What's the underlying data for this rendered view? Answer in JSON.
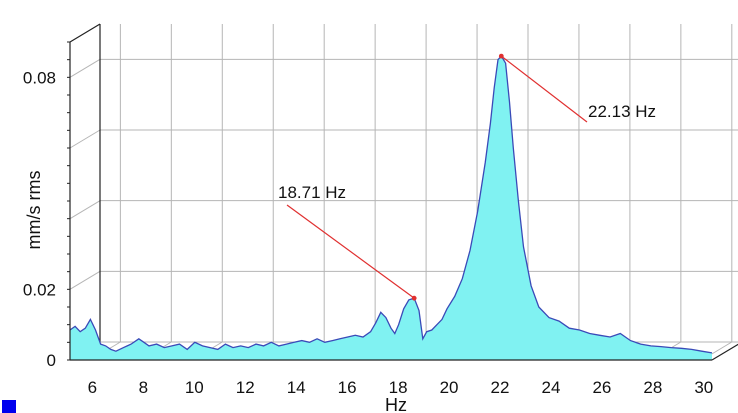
{
  "chart_data": {
    "type": "area",
    "xlabel": "Hz",
    "ylabel": "mm/s rms",
    "xlim": [
      5.2,
      30.4
    ],
    "ylim": [
      0,
      0.09
    ],
    "x_ticks": [
      "6",
      "8",
      "10",
      "12",
      "14",
      "16",
      "18",
      "20",
      "22",
      "24",
      "26",
      "28",
      "30"
    ],
    "y_ticks": [
      "0",
      "0.02",
      "0.08"
    ],
    "grid": true,
    "fill_color": "#80f2f2",
    "line_color": "#3a4ab8",
    "annotation_color": "#e03030",
    "series": [
      {
        "x": [
          5.2,
          5.4,
          5.6,
          5.8,
          6.0,
          6.2,
          6.4,
          6.6,
          6.8,
          7.0,
          7.3,
          7.6,
          7.9,
          8.1,
          8.3,
          8.6,
          8.9,
          9.2,
          9.5,
          9.8,
          10.1,
          10.4,
          10.7,
          11.0,
          11.3,
          11.6,
          11.9,
          12.2,
          12.5,
          12.8,
          13.1,
          13.4,
          13.7,
          14.0,
          14.3,
          14.6,
          14.9,
          15.2,
          15.5,
          15.8,
          16.1,
          16.4,
          16.7,
          17.0,
          17.2,
          17.4,
          17.6,
          17.8,
          17.95,
          18.1,
          18.3,
          18.5,
          18.71,
          18.9,
          19.05,
          19.2,
          19.4,
          19.6,
          19.8,
          20.0,
          20.3,
          20.6,
          20.9,
          21.2,
          21.5,
          21.7,
          21.85,
          22.0,
          22.13,
          22.3,
          22.45,
          22.6,
          22.8,
          23.0,
          23.3,
          23.6,
          24.0,
          24.4,
          24.8,
          25.2,
          25.6,
          26.0,
          26.4,
          26.8,
          27.2,
          27.6,
          28.0,
          28.4,
          28.8,
          29.2,
          29.6,
          30.0,
          30.4
        ],
        "y": [
          0.0085,
          0.0095,
          0.008,
          0.009,
          0.0115,
          0.0085,
          0.0045,
          0.004,
          0.003,
          0.0025,
          0.0035,
          0.0045,
          0.006,
          0.005,
          0.004,
          0.0045,
          0.0035,
          0.004,
          0.0045,
          0.003,
          0.005,
          0.004,
          0.0035,
          0.003,
          0.0045,
          0.0035,
          0.004,
          0.0035,
          0.0045,
          0.004,
          0.005,
          0.004,
          0.0045,
          0.005,
          0.0055,
          0.005,
          0.006,
          0.005,
          0.0055,
          0.006,
          0.0065,
          0.007,
          0.0065,
          0.008,
          0.0105,
          0.0135,
          0.012,
          0.009,
          0.0075,
          0.01,
          0.0145,
          0.017,
          0.0175,
          0.014,
          0.006,
          0.008,
          0.0085,
          0.01,
          0.0115,
          0.0145,
          0.018,
          0.023,
          0.031,
          0.042,
          0.056,
          0.067,
          0.077,
          0.085,
          0.086,
          0.084,
          0.073,
          0.06,
          0.045,
          0.032,
          0.021,
          0.015,
          0.012,
          0.011,
          0.009,
          0.0085,
          0.0075,
          0.007,
          0.0065,
          0.0075,
          0.0055,
          0.0045,
          0.004,
          0.0038,
          0.0035,
          0.0033,
          0.003,
          0.0025,
          0.002
        ]
      }
    ],
    "annotations": [
      {
        "label": "18.71 Hz",
        "x": 18.71,
        "y": 0.0175
      },
      {
        "label": "22.13 Hz",
        "x": 22.13,
        "y": 0.086
      }
    ]
  },
  "legend_marker_color": "#0000ee"
}
